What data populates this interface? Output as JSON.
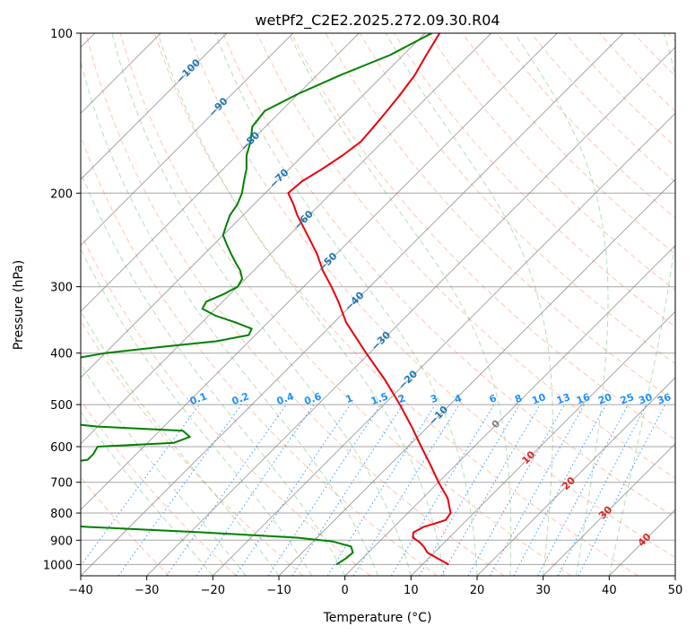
{
  "chart_data": {
    "type": "line",
    "title": "wetPf2_C2E2.2025.272.09.30.R04",
    "xlabel": "Temperature (°C)",
    "ylabel": "Pressure (hPa)",
    "xlim": [
      -40,
      50
    ],
    "ylim": [
      1050,
      100
    ],
    "y_scale": "log",
    "x_ticks": [
      -40,
      -30,
      -20,
      -10,
      0,
      10,
      20,
      30,
      40,
      50
    ],
    "x_tick_labels": [
      "−40",
      "−30",
      "−20",
      "−10",
      "0",
      "10",
      "20",
      "30",
      "40",
      "50"
    ],
    "y_ticks": [
      100,
      200,
      300,
      400,
      500,
      600,
      700,
      800,
      900,
      1000
    ],
    "y_tick_labels": [
      "100",
      "200",
      "300",
      "400",
      "500",
      "600",
      "700",
      "800",
      "900",
      "1000"
    ],
    "grid": true,
    "skew_deg": 45,
    "colors": {
      "temperature": "#e8000b",
      "dewpoint": "#008000",
      "dry_adiabat": "#ff7f50",
      "moist_adiabat": "#2ca02c",
      "mixing_ratio": "#1e90ff",
      "isotherm": "#808080",
      "isotherm_label": "#1f77b4",
      "warm_label": "#d62728",
      "zero_label": "#808080"
    },
    "series": [
      {
        "key": "temperature",
        "pressure": [
          1000,
          975,
          950,
          925,
          905,
          890,
          870,
          850,
          825,
          800,
          750,
          700,
          650,
          600,
          550,
          500,
          450,
          400,
          370,
          350,
          320,
          300,
          280,
          260,
          240,
          220,
          210,
          200,
          190,
          180,
          170,
          160,
          150,
          140,
          130,
          120,
          110,
          100
        ],
        "temperature": [
          14.0,
          11.5,
          9.0,
          7.5,
          6.0,
          4.5,
          3.8,
          4.5,
          6.8,
          6.5,
          3.8,
          0.0,
          -3.8,
          -8.0,
          -12.5,
          -17.6,
          -23.5,
          -30.5,
          -35.0,
          -38.2,
          -42.5,
          -45.8,
          -49.5,
          -53.0,
          -57.2,
          -61.8,
          -64.0,
          -66.5,
          -66.2,
          -65.0,
          -64.0,
          -63.3,
          -63.6,
          -64.0,
          -64.5,
          -65.2,
          -66.5,
          -67.8
        ]
      },
      {
        "key": "dewpoint",
        "pressure": [
          1000,
          975,
          950,
          925,
          905,
          890,
          870,
          850,
          835,
          825,
          815,
          805,
          800,
          790,
          780,
          770,
          760,
          740,
          720,
          700,
          680,
          665,
          650,
          635,
          620,
          600,
          590,
          575,
          560,
          550,
          540,
          530,
          520,
          510,
          500,
          490,
          470,
          450,
          440,
          420,
          400,
          390,
          380,
          370,
          360,
          350,
          340,
          330,
          320,
          310,
          300,
          290,
          280,
          270,
          260,
          250,
          240,
          230,
          220,
          210,
          200,
          190,
          180,
          170,
          160,
          150,
          140,
          130,
          120,
          110,
          100
        ],
        "dewpoint": [
          -3.0,
          -2.5,
          -2.3,
          -3.5,
          -7.0,
          -13.0,
          -28.0,
          -46.0,
          -57.0,
          -61.0,
          -64.0,
          -65.5,
          -65.5,
          -64.0,
          -62.0,
          -60.0,
          -59.5,
          -61.0,
          -63.0,
          -65.0,
          -64.0,
          -67.0,
          -61.0,
          -56.5,
          -56.5,
          -57.0,
          -46.0,
          -44.5,
          -46.5,
          -60.0,
          -67.0,
          -74.0,
          -82.0,
          -87.0,
          -88.0,
          -84.0,
          -80.0,
          -79.5,
          -80.0,
          -78.0,
          -70.0,
          -63.0,
          -55.0,
          -51.0,
          -51.5,
          -55.0,
          -59.0,
          -62.0,
          -62.5,
          -61.0,
          -60.0,
          -60.5,
          -62.0,
          -64.0,
          -66.0,
          -68.0,
          -70.0,
          -71.0,
          -72.0,
          -72.5,
          -73.5,
          -75.0,
          -76.5,
          -78.5,
          -80.0,
          -82.0,
          -82.5,
          -80.0,
          -76.5,
          -72.0,
          -69.0
        ]
      }
    ],
    "isotherm_labels": [
      "−100",
      "−90",
      "−80",
      "−70",
      "−60",
      "−50",
      "−40",
      "−30",
      "−20",
      "−10",
      "0",
      "10",
      "20",
      "30",
      "40"
    ],
    "mixing_ratio_labels": [
      "0.1",
      "0.2",
      "0.4",
      "0.6",
      "1",
      "1.5",
      "2",
      "3",
      "4",
      "6",
      "8",
      "10",
      "13",
      "16",
      "20",
      "25",
      "30",
      "36"
    ],
    "mixing_ratio_values": [
      0.1,
      0.2,
      0.4,
      0.6,
      1,
      1.5,
      2,
      3,
      4,
      6,
      8,
      10,
      13,
      16,
      20,
      25,
      30,
      36
    ]
  }
}
